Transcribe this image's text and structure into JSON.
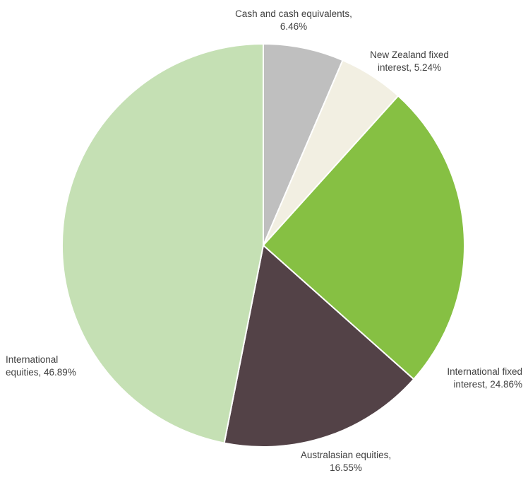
{
  "chart_data": {
    "type": "pie",
    "title": "",
    "start_angle_deg": 0,
    "direction": "clockwise",
    "legend": "none",
    "slices": [
      {
        "name": "Cash and cash equivalents",
        "value": 6.46,
        "color": "#bfbfbf",
        "label_lines": [
          "Cash and cash equivalents,",
          "6.46%"
        ]
      },
      {
        "name": "New Zealand fixed interest",
        "value": 5.24,
        "color": "#f2efe2",
        "label_lines": [
          "New Zealand fixed",
          "interest, 5.24%"
        ]
      },
      {
        "name": "International fixed interest",
        "value": 24.86,
        "color": "#86c043",
        "label_lines": [
          "International fixed",
          "interest, 24.86%"
        ]
      },
      {
        "name": "Australasian equities",
        "value": 16.55,
        "color": "#534247",
        "label_lines": [
          "Australasian equities,",
          "16.55%"
        ]
      },
      {
        "name": "International equities",
        "value": 46.89,
        "color": "#c5e0b4",
        "label_lines": [
          "International",
          "equities, 46.89%"
        ]
      }
    ]
  }
}
